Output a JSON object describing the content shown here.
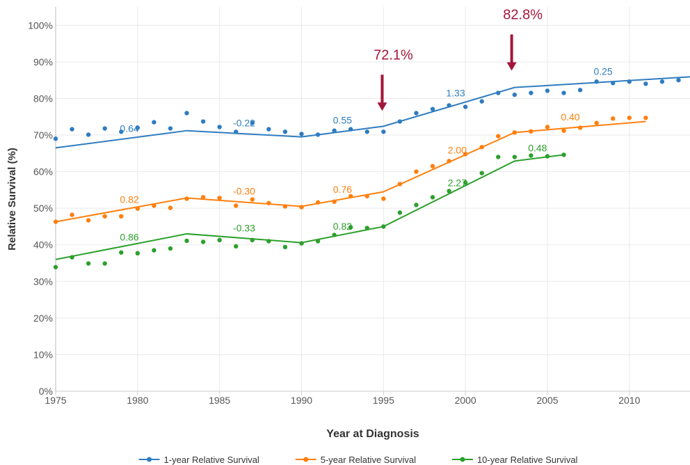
{
  "chart_data": {
    "type": "scatter-trend",
    "x_label": "Year at Diagnosis",
    "y_label": "Relative Survival (%)",
    "xlim": [
      1975,
      2013.7
    ],
    "ylim": [
      0,
      105
    ],
    "xticks": [
      1975,
      1980,
      1985,
      1990,
      1995,
      2000,
      2005,
      2010
    ],
    "yticks": [
      {
        "value": 0,
        "label": "0%"
      },
      {
        "value": 10,
        "label": "10%"
      },
      {
        "value": 20,
        "label": "20%"
      },
      {
        "value": 30,
        "label": "30%"
      },
      {
        "value": 40,
        "label": "40%"
      },
      {
        "value": 50,
        "label": "50%"
      },
      {
        "value": 60,
        "label": "60%"
      },
      {
        "value": 70,
        "label": "70%"
      },
      {
        "value": 80,
        "label": "80%"
      },
      {
        "value": 90,
        "label": "90%"
      },
      {
        "value": 100,
        "label": "100%"
      }
    ],
    "grid": true,
    "x": [
      1975,
      1976,
      1977,
      1978,
      1979,
      1980,
      1981,
      1982,
      1983,
      1984,
      1985,
      1986,
      1987,
      1988,
      1989,
      1990,
      1991,
      1992,
      1993,
      1994,
      1995,
      1996,
      1997,
      1998,
      1999,
      2000,
      2001,
      2002,
      2003,
      2004,
      2005,
      2006,
      2007,
      2008,
      2009,
      2010,
      2011,
      2012,
      2013
    ],
    "series": [
      {
        "name": "1-year Relative Survival",
        "color": "#2f7cc0",
        "values": [
          69.0,
          71.6,
          70.1,
          71.8,
          70.9,
          72.0,
          73.5,
          71.8,
          76.0,
          73.7,
          72.2,
          70.9,
          73.3,
          71.6,
          70.9,
          70.3,
          70.1,
          71.2,
          71.6,
          70.9,
          70.9,
          73.7,
          76.0,
          77.1,
          78.1,
          77.7,
          79.2,
          81.5,
          81.0,
          81.5,
          82.1,
          81.5,
          82.3,
          84.6,
          84.2,
          84.6,
          84.0,
          84.6,
          85.0
        ],
        "trend_x": [
          1975,
          1983,
          1990,
          1995,
          2003,
          2013.7
        ],
        "trend_values": [
          66.5,
          71.2,
          69.5,
          72.4,
          83.0,
          85.9
        ],
        "apc_labels": [
          {
            "text": "0.64",
            "x": 1979.5,
            "y": 71.8
          },
          {
            "text": "-0.22",
            "x": 1986.5,
            "y": 73.3
          },
          {
            "text": "0.55",
            "x": 1992.5,
            "y": 74.1
          },
          {
            "text": "1.33",
            "x": 1999.4,
            "y": 81.5
          },
          {
            "text": "0.25",
            "x": 2008.4,
            "y": 87.4
          }
        ]
      },
      {
        "name": "5-year Relative Survival",
        "color": "#ff7f0e",
        "values": [
          46.3,
          48.2,
          46.7,
          47.8,
          47.8,
          49.9,
          50.7,
          50.1,
          52.6,
          53.0,
          52.8,
          50.7,
          52.4,
          51.4,
          50.5,
          50.3,
          51.6,
          51.8,
          53.3,
          53.3,
          52.6,
          56.6,
          60.0,
          61.5,
          62.9,
          64.8,
          66.7,
          69.7,
          70.7,
          71.0,
          72.2,
          71.2,
          72.0,
          73.3,
          74.5,
          74.7,
          74.7,
          null,
          null
        ],
        "trend_x": [
          1975,
          1983,
          1990,
          1995,
          2003,
          2011
        ],
        "trend_values": [
          46.3,
          52.8,
          50.5,
          54.5,
          70.7,
          73.7
        ],
        "apc_labels": [
          {
            "text": "0.82",
            "x": 1979.5,
            "y": 52.4
          },
          {
            "text": "-0.30",
            "x": 1986.5,
            "y": 54.7
          },
          {
            "text": "0.76",
            "x": 1992.5,
            "y": 55.2
          },
          {
            "text": "2.00",
            "x": 1999.5,
            "y": 65.9
          },
          {
            "text": "0.40",
            "x": 2006.4,
            "y": 74.9
          }
        ]
      },
      {
        "name": "10-year Relative Survival",
        "color": "#2ca02c",
        "values": [
          33.9,
          36.6,
          34.9,
          34.9,
          37.9,
          37.7,
          38.5,
          39.0,
          41.1,
          40.8,
          41.3,
          39.6,
          41.3,
          41.0,
          39.4,
          40.4,
          41.0,
          42.7,
          44.8,
          44.6,
          45.0,
          48.8,
          50.9,
          53.0,
          54.7,
          57.0,
          59.6,
          64.0,
          64.0,
          64.4,
          64.2,
          64.6,
          null,
          null,
          null,
          null,
          null,
          null,
          null
        ],
        "trend_x": [
          1975,
          1983,
          1990,
          1995,
          2003,
          2006
        ],
        "trend_values": [
          36.0,
          43.0,
          40.6,
          45.0,
          62.9,
          64.6
        ],
        "apc_labels": [
          {
            "text": "0.86",
            "x": 1979.5,
            "y": 42.1
          },
          {
            "text": "-0.33",
            "x": 1986.5,
            "y": 44.6
          },
          {
            "text": "0.82",
            "x": 1992.5,
            "y": 45.1
          },
          {
            "text": "2.27",
            "x": 1999.5,
            "y": 57.0
          },
          {
            "text": "0.48",
            "x": 2004.4,
            "y": 66.5
          }
        ]
      }
    ],
    "annotations": [
      {
        "text": "72.1%",
        "x": 1995.6,
        "y": 92.2,
        "color": "#a3173a"
      },
      {
        "text": "82.8%",
        "x": 2003.5,
        "y": 103.2,
        "color": "#a3173a"
      }
    ]
  }
}
